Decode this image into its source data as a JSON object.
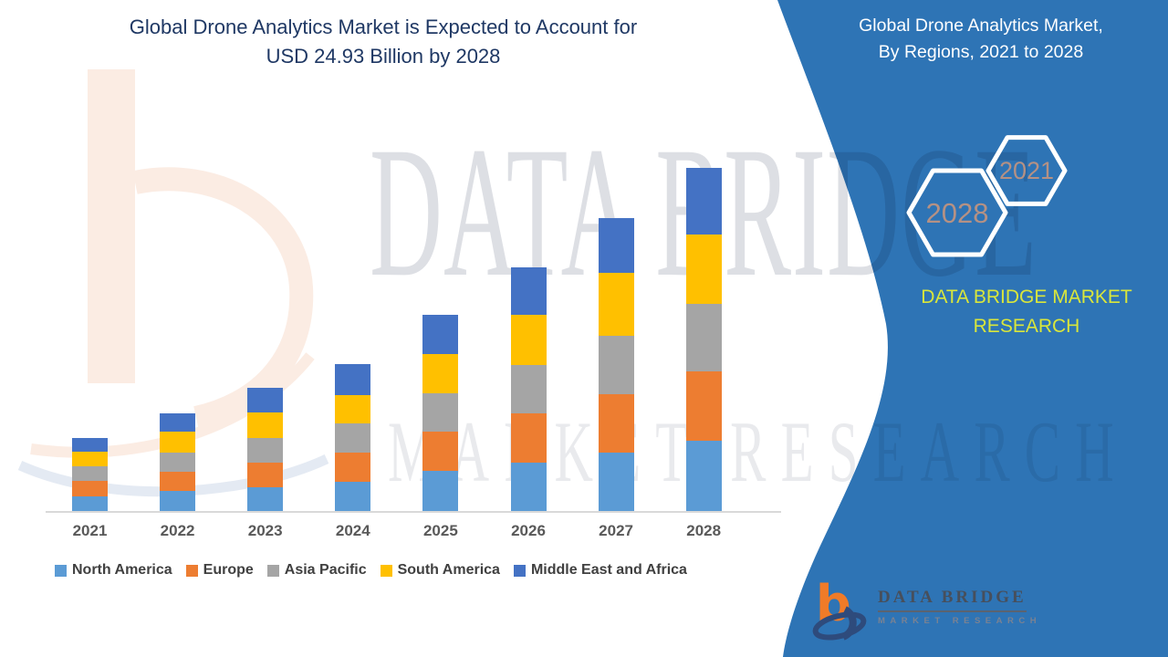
{
  "header": {
    "title_line1": "Global Drone Analytics Market is Expected to Account for",
    "title_line2": "USD 24.93 Billion by 2028"
  },
  "right_panel": {
    "title_line1": "Global Drone Analytics Market,",
    "title_line2": "By Regions, 2021 to 2028",
    "badges": [
      {
        "year": "2028"
      },
      {
        "year": "2021"
      }
    ],
    "brand_line1": "DATA BRIDGE MARKET",
    "brand_line2": "RESEARCH",
    "panel_color": "#2E74B5",
    "brand_text_color": "#D9E63B",
    "badge_text_color": "#B59184"
  },
  "watermark": {
    "big_text": "DATA BRIDGE",
    "sub_text": "MARKET RESEARCH"
  },
  "footer_logo": {
    "name": "DATA BRIDGE",
    "tagline": "MARKET RESEARCH"
  },
  "chart_data": {
    "type": "bar",
    "stacked": true,
    "title": "Global Drone Analytics Market is Expected to Account for USD 24.93 Billion by 2028",
    "unit": "USD Billion",
    "total_2028_usd_billion": 24.93,
    "categories": [
      "2021",
      "2022",
      "2023",
      "2024",
      "2025",
      "2026",
      "2027",
      "2028"
    ],
    "series": [
      {
        "name": "North America",
        "color": "#5B9BD5",
        "values": [
          1.06,
          1.46,
          1.72,
          2.12,
          2.92,
          3.53,
          4.26,
          5.11
        ]
      },
      {
        "name": "Europe",
        "color": "#ED7D31",
        "values": [
          1.15,
          1.41,
          1.81,
          2.12,
          2.87,
          3.58,
          4.26,
          5.04
        ]
      },
      {
        "name": "Asia Pacific",
        "color": "#A5A5A5",
        "values": [
          1.02,
          1.39,
          1.77,
          2.16,
          2.78,
          3.51,
          4.24,
          4.91
        ]
      },
      {
        "name": "South America",
        "color": "#FFC000",
        "values": [
          1.09,
          1.53,
          1.86,
          2.04,
          2.83,
          3.67,
          4.53,
          5.04
        ]
      },
      {
        "name": "Middle East and Africa",
        "color": "#4472C4",
        "values": [
          0.99,
          1.33,
          1.81,
          2.23,
          2.85,
          3.45,
          3.98,
          4.84
        ]
      }
    ],
    "legend_position": "bottom",
    "axis": {
      "x_labels_visible": true,
      "y_axis_visible": false,
      "gridlines": false
    }
  }
}
